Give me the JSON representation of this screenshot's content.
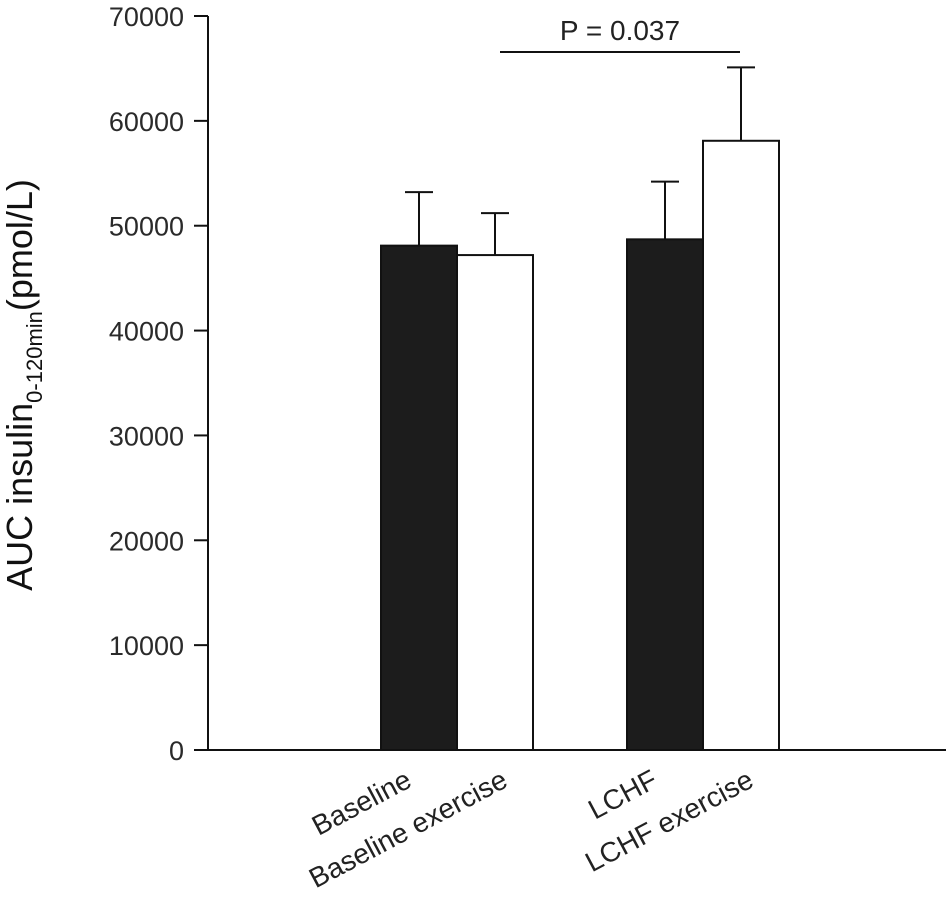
{
  "chart_data": {
    "type": "bar",
    "ylabel": {
      "main": "AUC insulin",
      "subscript": "0-120min",
      "unit": "(pmol/L)"
    },
    "ylim": [
      0,
      70000
    ],
    "yticks": [
      0,
      10000,
      20000,
      30000,
      40000,
      50000,
      60000,
      70000
    ],
    "grid": false,
    "categories": [
      "Baseline",
      "Baseline exercise",
      "LCHF",
      "LCHF exercise"
    ],
    "bars": [
      {
        "label": "Baseline",
        "value": 48100,
        "error": 5100,
        "fill": "black"
      },
      {
        "label": "Baseline exercise",
        "value": 47200,
        "error": 4000,
        "fill": "white"
      },
      {
        "label": "LCHF",
        "value": 48700,
        "error": 5500,
        "fill": "black"
      },
      {
        "label": "LCHF exercise",
        "value": 58100,
        "error": 7000,
        "fill": "white"
      }
    ],
    "annotations": [
      {
        "text": "P = 0.037",
        "between": [
          "Baseline exercise",
          "LCHF exercise"
        ]
      }
    ]
  },
  "colors": {
    "black_bar": "#1c1c1c",
    "white_bar": "#ffffff",
    "axis": "#111111"
  }
}
